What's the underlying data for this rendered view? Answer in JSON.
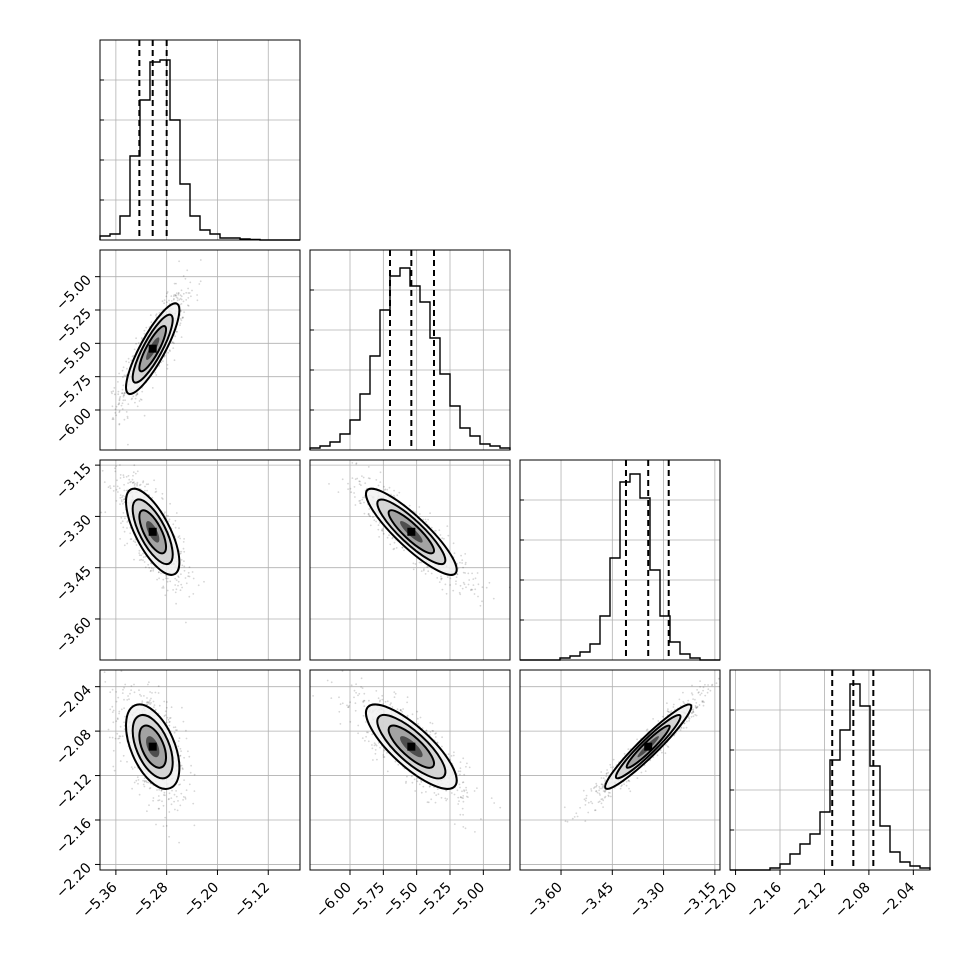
{
  "chart_data": {
    "type": "corner",
    "title": "",
    "params": [
      {
        "range": [
          -5.385,
          -5.07
        ],
        "ticks": [
          -5.36,
          -5.28,
          -5.2,
          -5.12
        ],
        "tick_labels": [
          "−5.36",
          "−5.28",
          "−5.20",
          "−5.12"
        ],
        "quantiles": [
          -5.323,
          -5.302,
          -5.28
        ]
      },
      {
        "range": [
          -6.3,
          -4.8
        ],
        "ticks": [
          -6.0,
          -5.75,
          -5.5,
          -5.25,
          -5.0
        ],
        "tick_labels": [
          "−6.00",
          "−5.75",
          "−5.50",
          "−5.25",
          "−5.00"
        ],
        "quantiles": [
          -5.7,
          -5.54,
          -5.37
        ]
      },
      {
        "range": [
          -3.72,
          -3.135
        ],
        "ticks": [
          -3.6,
          -3.45,
          -3.3,
          -3.15
        ],
        "tick_labels": [
          "−3.60",
          "−3.45",
          "−3.30",
          "−3.15"
        ],
        "quantiles": [
          -3.41,
          -3.345,
          -3.285
        ]
      },
      {
        "range": [
          -2.205,
          -2.025
        ],
        "ticks": [
          -2.2,
          -2.16,
          -2.12,
          -2.08,
          -2.04
        ],
        "tick_labels": [
          "−2.20",
          "−2.16",
          "−2.12",
          "−2.08",
          "−2.04"
        ],
        "quantiles": [
          -2.113,
          -2.094,
          -2.076
        ]
      }
    ],
    "histograms": [
      [
        0.02,
        0.03,
        0.12,
        0.42,
        0.7,
        0.89,
        0.9,
        0.6,
        0.28,
        0.12,
        0.05,
        0.03,
        0.01,
        0.01,
        0.005,
        0.003,
        0,
        0,
        0,
        0
      ],
      [
        0.01,
        0.02,
        0.04,
        0.08,
        0.15,
        0.28,
        0.47,
        0.7,
        0.87,
        0.91,
        0.82,
        0.74,
        0.56,
        0.38,
        0.22,
        0.11,
        0.07,
        0.03,
        0.02,
        0.01
      ],
      [
        0,
        0,
        0,
        0,
        0.01,
        0.02,
        0.04,
        0.08,
        0.22,
        0.51,
        0.89,
        0.93,
        0.81,
        0.45,
        0.22,
        0.09,
        0.03,
        0.01,
        0,
        0
      ],
      [
        0,
        0,
        0,
        0,
        0.01,
        0.03,
        0.08,
        0.13,
        0.18,
        0.29,
        0.55,
        0.7,
        0.93,
        0.82,
        0.52,
        0.22,
        0.09,
        0.04,
        0.02,
        0.01
      ]
    ],
    "correlations": [
      [
        1.0,
        0.85,
        -0.7,
        -0.5
      ],
      [
        0.85,
        1.0,
        -0.88,
        -0.8
      ],
      [
        -0.7,
        -0.88,
        1.0,
        0.95
      ],
      [
        -0.5,
        -0.8,
        0.95,
        1.0
      ]
    ],
    "sigmas": [
      0.021,
      0.17,
      0.063,
      0.019
    ],
    "centers": [
      -5.302,
      -5.54,
      -3.345,
      -2.094
    ],
    "quantile_line_style": "dashed",
    "contour_levels": [
      0.5,
      1.0,
      1.5,
      2.0
    ],
    "grid": true
  }
}
